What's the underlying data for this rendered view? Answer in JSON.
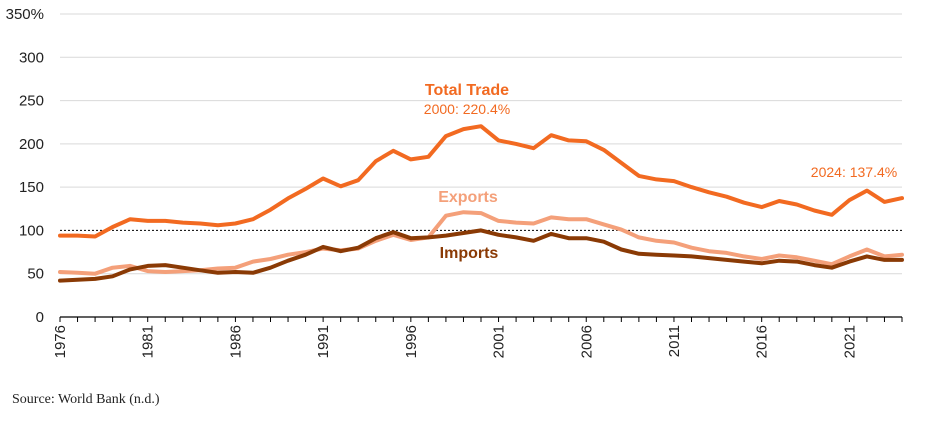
{
  "chart_data": {
    "type": "line",
    "title": "",
    "xlabel": "",
    "ylabel": "",
    "ylim": [
      0,
      350
    ],
    "xlim": [
      1976,
      2024
    ],
    "y_ticks": [
      0,
      50,
      100,
      150,
      200,
      250,
      300,
      350
    ],
    "y_tick_labels": [
      "0",
      "50",
      "100",
      "150",
      "200",
      "250",
      "300",
      "350%"
    ],
    "x_ticks": [
      1976,
      1981,
      1986,
      1991,
      1996,
      2001,
      2006,
      2011,
      2016,
      2021
    ],
    "x_tick_labels": [
      "1976",
      "1981",
      "1986",
      "1991",
      "1996",
      "2001",
      "2006",
      "2011",
      "2016",
      "2021"
    ],
    "reference_line": {
      "y": 100,
      "style": "dotted"
    },
    "x": [
      1976,
      1977,
      1978,
      1979,
      1980,
      1981,
      1982,
      1983,
      1984,
      1985,
      1986,
      1987,
      1988,
      1989,
      1990,
      1991,
      1992,
      1993,
      1994,
      1995,
      1996,
      1997,
      1998,
      1999,
      2000,
      2001,
      2002,
      2003,
      2004,
      2005,
      2006,
      2007,
      2008,
      2009,
      2010,
      2011,
      2012,
      2013,
      2014,
      2015,
      2016,
      2017,
      2018,
      2019,
      2020,
      2021,
      2022,
      2023,
      2024
    ],
    "series": [
      {
        "name": "Total Trade",
        "color": "#f26a21",
        "values": [
          94,
          94,
          93,
          104,
          113,
          111,
          111,
          109,
          108,
          106,
          108,
          113,
          124,
          137,
          148,
          160,
          151,
          158,
          180,
          192,
          182,
          185,
          209,
          217,
          220.4,
          204,
          200,
          195,
          210,
          204,
          203,
          193,
          178,
          163,
          159,
          157,
          150,
          144,
          139,
          132,
          127,
          134,
          130,
          123,
          118,
          135,
          146,
          133,
          137.4
        ]
      },
      {
        "name": "Exports",
        "color": "#f4a07a",
        "values": [
          52,
          51,
          50,
          57,
          59,
          53,
          52,
          53,
          54,
          56,
          57,
          64,
          67,
          72,
          75,
          79,
          77,
          79,
          88,
          95,
          89,
          92,
          117,
          121,
          120,
          111,
          109,
          108,
          115,
          113,
          113,
          107,
          101,
          92,
          88,
          86,
          80,
          76,
          74,
          70,
          67,
          71,
          69,
          65,
          61,
          70,
          78,
          70,
          72
        ]
      },
      {
        "name": "Imports",
        "color": "#8a3a05",
        "values": [
          42,
          43,
          44,
          47,
          55,
          59,
          60,
          57,
          54,
          51,
          52,
          51,
          57,
          65,
          72,
          81,
          76,
          80,
          91,
          98,
          91,
          92,
          94,
          97,
          100,
          95,
          92,
          88,
          96,
          91,
          91,
          87,
          78,
          73,
          72,
          71,
          70,
          68,
          66,
          64,
          62,
          65,
          64,
          60,
          57,
          64,
          70,
          66,
          66
        ]
      }
    ],
    "labels": {
      "total_trade": "Total Trade",
      "exports": "Exports",
      "imports": "Imports",
      "peak_annotation": "2000: 220.4%",
      "end_annotation": "2024: 137.4%"
    }
  },
  "source": "Source: World Bank (n.d.)"
}
